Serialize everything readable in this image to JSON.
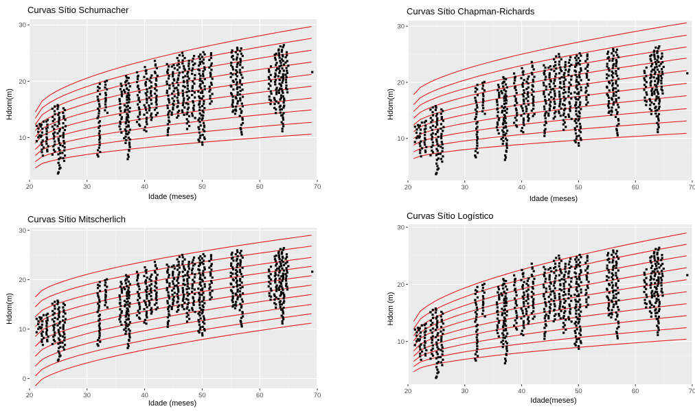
{
  "chart_data": [
    {
      "type": "scatter",
      "title": "Curvas Sítio Schumacher",
      "xlabel": "Idade (meses)",
      "ylabel": "Hdom(m)",
      "xlim": [
        20,
        70
      ],
      "ylim": [
        2.5,
        31
      ],
      "xticks": [
        20,
        30,
        40,
        50,
        60,
        70
      ],
      "yticks": [
        10,
        20,
        30
      ],
      "grid": true,
      "curve_color": "#e41a1c",
      "curve_family": "schumacher",
      "curves_x": [
        21,
        69
      ],
      "curves": [
        {
          "start": 4.6,
          "end": 10.6
        },
        {
          "start": 5.7,
          "end": 12.7
        },
        {
          "start": 6.8,
          "end": 14.9
        },
        {
          "start": 7.9,
          "end": 17.0
        },
        {
          "start": 9.0,
          "end": 19.1
        },
        {
          "start": 10.1,
          "end": 21.2
        },
        {
          "start": 11.2,
          "end": 23.4
        },
        {
          "start": 12.3,
          "end": 25.5
        },
        {
          "start": 13.4,
          "end": 27.6
        },
        {
          "start": 14.5,
          "end": 29.7
        }
      ],
      "point_groups": [
        {
          "x": 21.5,
          "min": 9.5,
          "max": 12.5
        },
        {
          "x": 22.2,
          "min": 6.8,
          "max": 12.8
        },
        {
          "x": 23.0,
          "min": 7.5,
          "max": 13.2
        },
        {
          "x": 24.2,
          "min": 7.0,
          "max": 15.5
        },
        {
          "x": 25.1,
          "min": 3.5,
          "max": 15.8
        },
        {
          "x": 26.0,
          "min": 6.0,
          "max": 15.2
        },
        {
          "x": 32.0,
          "min": 6.5,
          "max": 19.5
        },
        {
          "x": 33.3,
          "min": 14.5,
          "max": 20.2
        },
        {
          "x": 35.8,
          "min": 11.0,
          "max": 19.5
        },
        {
          "x": 36.7,
          "min": 9.0,
          "max": 21.0
        },
        {
          "x": 37.2,
          "min": 6.2,
          "max": 20.5
        },
        {
          "x": 38.9,
          "min": 12.0,
          "max": 21.5
        },
        {
          "x": 40.2,
          "min": 11.0,
          "max": 22.5
        },
        {
          "x": 41.0,
          "min": 13.0,
          "max": 21.0
        },
        {
          "x": 42.0,
          "min": 14.0,
          "max": 23.5
        },
        {
          "x": 44.1,
          "min": 10.5,
          "max": 23.0
        },
        {
          "x": 45.0,
          "min": 14.0,
          "max": 23.0
        },
        {
          "x": 45.8,
          "min": 13.5,
          "max": 24.5
        },
        {
          "x": 46.8,
          "min": 14.0,
          "max": 25.0
        },
        {
          "x": 47.5,
          "min": 11.5,
          "max": 23.5
        },
        {
          "x": 48.5,
          "min": 13.5,
          "max": 24.5
        },
        {
          "x": 49.6,
          "min": 9.2,
          "max": 24.8
        },
        {
          "x": 50.2,
          "min": 8.8,
          "max": 25.2
        },
        {
          "x": 51.5,
          "min": 16.0,
          "max": 25.0
        },
        {
          "x": 55.2,
          "min": 14.5,
          "max": 25.5
        },
        {
          "x": 56.0,
          "min": 14.2,
          "max": 26.0
        },
        {
          "x": 56.8,
          "min": 10.5,
          "max": 25.8
        },
        {
          "x": 61.8,
          "min": 16.0,
          "max": 22.5
        },
        {
          "x": 62.8,
          "min": 14.5,
          "max": 25.0
        },
        {
          "x": 63.5,
          "min": 14.0,
          "max": 26.2
        },
        {
          "x": 64.0,
          "min": 11.0,
          "max": 26.5
        },
        {
          "x": 64.7,
          "min": 18.0,
          "max": 25.0
        },
        {
          "x": 69.0,
          "min": 21.5,
          "max": 21.5
        }
      ]
    },
    {
      "type": "scatter",
      "title": "Curvas Sítio Chapman-Richards",
      "xlabel": "Idade (meses)",
      "ylabel": "Hdom(m)",
      "xlim": [
        20,
        70
      ],
      "ylim": [
        2.5,
        31
      ],
      "xticks": [
        20,
        30,
        40,
        50,
        60,
        70
      ],
      "yticks": [
        10,
        20,
        30
      ],
      "grid": true,
      "curve_color": "#e41a1c",
      "curve_family": "chapman",
      "curves_x": [
        21,
        69
      ],
      "curves": [
        {
          "start": 6.4,
          "end": 10.9
        },
        {
          "start": 7.6,
          "end": 13.1
        },
        {
          "start": 8.8,
          "end": 15.3
        },
        {
          "start": 10.0,
          "end": 17.6
        },
        {
          "start": 11.2,
          "end": 19.8
        },
        {
          "start": 12.4,
          "end": 22.1
        },
        {
          "start": 13.6,
          "end": 24.3
        },
        {
          "start": 14.8,
          "end": 26.3
        },
        {
          "start": 16.0,
          "end": 28.4
        },
        {
          "start": 17.8,
          "end": 30.6
        }
      ],
      "point_groups": [
        {
          "x": 21.5,
          "min": 9.5,
          "max": 12.5
        },
        {
          "x": 22.2,
          "min": 6.8,
          "max": 12.8
        },
        {
          "x": 23.0,
          "min": 7.5,
          "max": 13.2
        },
        {
          "x": 24.2,
          "min": 7.0,
          "max": 15.5
        },
        {
          "x": 25.1,
          "min": 3.5,
          "max": 15.8
        },
        {
          "x": 26.0,
          "min": 6.0,
          "max": 15.2
        },
        {
          "x": 32.0,
          "min": 6.5,
          "max": 19.5
        },
        {
          "x": 33.3,
          "min": 14.5,
          "max": 20.2
        },
        {
          "x": 35.8,
          "min": 11.0,
          "max": 19.5
        },
        {
          "x": 36.7,
          "min": 9.0,
          "max": 21.0
        },
        {
          "x": 37.2,
          "min": 6.2,
          "max": 20.5
        },
        {
          "x": 38.9,
          "min": 12.0,
          "max": 21.5
        },
        {
          "x": 40.2,
          "min": 11.0,
          "max": 22.5
        },
        {
          "x": 41.0,
          "min": 13.0,
          "max": 21.0
        },
        {
          "x": 42.0,
          "min": 14.0,
          "max": 23.5
        },
        {
          "x": 44.1,
          "min": 10.5,
          "max": 23.0
        },
        {
          "x": 45.0,
          "min": 14.0,
          "max": 23.0
        },
        {
          "x": 45.8,
          "min": 13.5,
          "max": 24.5
        },
        {
          "x": 46.8,
          "min": 14.0,
          "max": 25.0
        },
        {
          "x": 47.5,
          "min": 11.5,
          "max": 23.5
        },
        {
          "x": 48.5,
          "min": 13.5,
          "max": 24.5
        },
        {
          "x": 49.6,
          "min": 9.2,
          "max": 24.8
        },
        {
          "x": 50.2,
          "min": 8.8,
          "max": 25.2
        },
        {
          "x": 51.5,
          "min": 16.0,
          "max": 25.0
        },
        {
          "x": 55.2,
          "min": 14.5,
          "max": 25.5
        },
        {
          "x": 56.0,
          "min": 14.2,
          "max": 26.0
        },
        {
          "x": 56.8,
          "min": 10.5,
          "max": 25.8
        },
        {
          "x": 61.8,
          "min": 16.0,
          "max": 22.5
        },
        {
          "x": 62.8,
          "min": 14.5,
          "max": 25.0
        },
        {
          "x": 63.5,
          "min": 14.0,
          "max": 26.2
        },
        {
          "x": 64.0,
          "min": 11.0,
          "max": 26.5
        },
        {
          "x": 64.7,
          "min": 18.0,
          "max": 25.0
        },
        {
          "x": 69.0,
          "min": 21.5,
          "max": 21.5
        }
      ]
    },
    {
      "type": "scatter",
      "title": "Curvas Sítio Mitscherlich",
      "xlabel": "Idade (meses)",
      "ylabel": "Hdom(m)",
      "xlim": [
        20,
        70
      ],
      "ylim": [
        -2,
        30.5
      ],
      "xticks": [
        20,
        30,
        40,
        50,
        60,
        70
      ],
      "yticks": [
        0,
        10,
        20,
        30
      ],
      "grid": true,
      "curve_color": "#e41a1c",
      "curve_family": "mitscherlich",
      "curves_x": [
        21,
        69
      ],
      "curves": [
        {
          "start": -1.5,
          "end": 11.2
        },
        {
          "start": 0.5,
          "end": 13.1
        },
        {
          "start": 2.5,
          "end": 15.0
        },
        {
          "start": 4.5,
          "end": 17.0
        },
        {
          "start": 6.5,
          "end": 18.9
        },
        {
          "start": 8.5,
          "end": 20.8
        },
        {
          "start": 10.5,
          "end": 22.7
        },
        {
          "start": 12.5,
          "end": 24.5
        },
        {
          "start": 14.5,
          "end": 26.8
        },
        {
          "start": 16.5,
          "end": 29.0
        }
      ],
      "point_groups": [
        {
          "x": 21.5,
          "min": 9.5,
          "max": 12.5
        },
        {
          "x": 22.2,
          "min": 6.8,
          "max": 12.8
        },
        {
          "x": 23.0,
          "min": 7.5,
          "max": 13.2
        },
        {
          "x": 24.2,
          "min": 7.0,
          "max": 15.5
        },
        {
          "x": 25.1,
          "min": 3.5,
          "max": 15.8
        },
        {
          "x": 26.0,
          "min": 6.0,
          "max": 15.2
        },
        {
          "x": 32.0,
          "min": 6.5,
          "max": 19.5
        },
        {
          "x": 33.3,
          "min": 14.5,
          "max": 20.2
        },
        {
          "x": 35.8,
          "min": 11.0,
          "max": 19.5
        },
        {
          "x": 36.7,
          "min": 9.0,
          "max": 21.0
        },
        {
          "x": 37.2,
          "min": 6.2,
          "max": 20.5
        },
        {
          "x": 38.9,
          "min": 12.0,
          "max": 21.5
        },
        {
          "x": 40.2,
          "min": 11.0,
          "max": 22.5
        },
        {
          "x": 41.0,
          "min": 13.0,
          "max": 21.0
        },
        {
          "x": 42.0,
          "min": 14.0,
          "max": 23.5
        },
        {
          "x": 44.1,
          "min": 10.5,
          "max": 23.0
        },
        {
          "x": 45.0,
          "min": 14.0,
          "max": 23.0
        },
        {
          "x": 45.8,
          "min": 13.5,
          "max": 24.5
        },
        {
          "x": 46.8,
          "min": 14.0,
          "max": 25.0
        },
        {
          "x": 47.5,
          "min": 11.5,
          "max": 23.5
        },
        {
          "x": 48.5,
          "min": 13.5,
          "max": 24.5
        },
        {
          "x": 49.6,
          "min": 9.2,
          "max": 24.8
        },
        {
          "x": 50.2,
          "min": 8.8,
          "max": 25.2
        },
        {
          "x": 51.5,
          "min": 16.0,
          "max": 25.0
        },
        {
          "x": 55.2,
          "min": 14.5,
          "max": 25.5
        },
        {
          "x": 56.0,
          "min": 14.2,
          "max": 26.0
        },
        {
          "x": 56.8,
          "min": 10.5,
          "max": 25.8
        },
        {
          "x": 61.8,
          "min": 16.0,
          "max": 22.5
        },
        {
          "x": 62.8,
          "min": 14.5,
          "max": 25.0
        },
        {
          "x": 63.5,
          "min": 14.0,
          "max": 26.2
        },
        {
          "x": 64.0,
          "min": 11.0,
          "max": 26.5
        },
        {
          "x": 64.7,
          "min": 18.0,
          "max": 25.0
        },
        {
          "x": 69.0,
          "min": 21.5,
          "max": 21.5
        }
      ]
    },
    {
      "type": "scatter",
      "title": "Curvas Sítio Logístico",
      "xlabel": "Idade(meses)",
      "ylabel": "Hdom (m)",
      "xlim": [
        20,
        70
      ],
      "ylim": [
        2.5,
        30.5
      ],
      "xticks": [
        20,
        30,
        40,
        50,
        60,
        70
      ],
      "yticks": [
        10,
        20,
        30
      ],
      "grid": true,
      "curve_color": "#e41a1c",
      "curve_family": "logistico",
      "curves_x": [
        21,
        69
      ],
      "curves": [
        {
          "start": 4.7,
          "end": 10.4
        },
        {
          "start": 5.6,
          "end": 12.4
        },
        {
          "start": 6.5,
          "end": 14.5
        },
        {
          "start": 7.4,
          "end": 16.6
        },
        {
          "start": 8.3,
          "end": 18.7
        },
        {
          "start": 9.2,
          "end": 20.8
        },
        {
          "start": 10.1,
          "end": 22.9
        },
        {
          "start": 11.0,
          "end": 25.0
        },
        {
          "start": 12.2,
          "end": 27.0
        },
        {
          "start": 13.5,
          "end": 29.0
        }
      ],
      "point_groups": [
        {
          "x": 21.5,
          "min": 9.5,
          "max": 12.5
        },
        {
          "x": 22.2,
          "min": 6.8,
          "max": 12.8
        },
        {
          "x": 23.0,
          "min": 7.5,
          "max": 13.2
        },
        {
          "x": 24.2,
          "min": 7.0,
          "max": 15.5
        },
        {
          "x": 25.1,
          "min": 3.5,
          "max": 15.8
        },
        {
          "x": 26.0,
          "min": 6.0,
          "max": 15.2
        },
        {
          "x": 32.0,
          "min": 6.5,
          "max": 19.5
        },
        {
          "x": 33.3,
          "min": 14.5,
          "max": 20.2
        },
        {
          "x": 35.8,
          "min": 11.0,
          "max": 19.5
        },
        {
          "x": 36.7,
          "min": 9.0,
          "max": 21.0
        },
        {
          "x": 37.2,
          "min": 6.2,
          "max": 20.5
        },
        {
          "x": 38.9,
          "min": 12.0,
          "max": 21.5
        },
        {
          "x": 40.2,
          "min": 11.0,
          "max": 22.5
        },
        {
          "x": 41.0,
          "min": 13.0,
          "max": 21.0
        },
        {
          "x": 42.0,
          "min": 14.0,
          "max": 23.5
        },
        {
          "x": 44.1,
          "min": 10.5,
          "max": 23.0
        },
        {
          "x": 45.0,
          "min": 14.0,
          "max": 23.0
        },
        {
          "x": 45.8,
          "min": 13.5,
          "max": 24.5
        },
        {
          "x": 46.8,
          "min": 14.0,
          "max": 25.0
        },
        {
          "x": 47.5,
          "min": 11.5,
          "max": 23.5
        },
        {
          "x": 48.5,
          "min": 13.5,
          "max": 24.5
        },
        {
          "x": 49.6,
          "min": 9.2,
          "max": 24.8
        },
        {
          "x": 50.2,
          "min": 8.8,
          "max": 25.2
        },
        {
          "x": 51.5,
          "min": 16.0,
          "max": 25.0
        },
        {
          "x": 55.2,
          "min": 14.5,
          "max": 25.5
        },
        {
          "x": 56.0,
          "min": 14.2,
          "max": 26.0
        },
        {
          "x": 56.8,
          "min": 10.5,
          "max": 25.8
        },
        {
          "x": 61.8,
          "min": 16.0,
          "max": 22.5
        },
        {
          "x": 62.8,
          "min": 14.5,
          "max": 25.0
        },
        {
          "x": 63.5,
          "min": 14.0,
          "max": 26.2
        },
        {
          "x": 64.0,
          "min": 11.0,
          "max": 26.5
        },
        {
          "x": 64.7,
          "min": 18.0,
          "max": 25.0
        },
        {
          "x": 69.0,
          "min": 21.5,
          "max": 21.5
        }
      ]
    }
  ]
}
